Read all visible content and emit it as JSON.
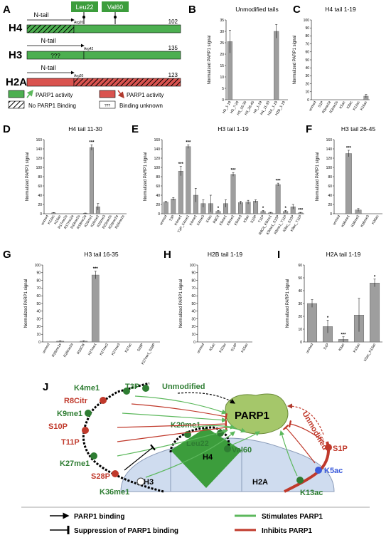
{
  "panel_a": {
    "letter": "A",
    "constructs": [
      {
        "name": "H4",
        "ntail": "N-tail",
        "mark": "Arg20",
        "length": "102",
        "color": "green",
        "unknown": false
      },
      {
        "name": "H3",
        "ntail": "N-tail",
        "mark": "Arg42",
        "length": "135",
        "color": "green",
        "unknown": true
      },
      {
        "name": "H2A",
        "ntail": "N-tail",
        "mark": "Arg20",
        "length": "123",
        "color": "red",
        "unknown": false
      }
    ],
    "markers": [
      "Leu22",
      "Val60"
    ],
    "unknown_text": "???",
    "legend": {
      "green_box": "PARP1 activity",
      "red_box": "PARP1 activity",
      "hatch": "No PARP1 Binding",
      "unknown_box": "???",
      "unknown": "Binding unknown"
    }
  },
  "chart_data": [
    {
      "panel": "B",
      "type": "bar",
      "title": "Unmodified tails",
      "ylabel": "Normalized PARP1 signal",
      "ylim": [
        0,
        35
      ],
      "yticks": [
        0,
        5,
        10,
        15,
        20,
        25,
        30,
        35
      ],
      "categories": [
        "H3_1-19",
        "H3_7-26",
        "H3_16-35",
        "H3_26-45",
        "H4_1-19",
        "H4_11-30",
        "H2A_1-19",
        "H2B_1-19"
      ],
      "values": [
        25.5,
        0,
        0,
        0,
        0,
        0,
        30,
        0
      ],
      "errors": [
        5,
        0,
        0,
        0,
        0,
        0,
        3,
        0
      ],
      "stars": [
        "",
        "",
        "",
        "",
        "",
        "",
        "",
        ""
      ]
    },
    {
      "panel": "C",
      "type": "bar",
      "title": "H4 tail 1-19",
      "ylabel": "Normalized PARP1 signal",
      "ylim": [
        0,
        100
      ],
      "yticks": [
        0,
        10,
        20,
        30,
        40,
        50,
        60,
        70,
        80,
        90,
        100
      ],
      "categories": [
        "unmod",
        "S1P",
        "R3me2a",
        "R3me2s",
        "K5ac",
        "K8ac",
        "K12ac",
        "K16ac"
      ],
      "values": [
        0,
        0,
        0,
        0,
        0,
        0,
        0,
        4.5
      ],
      "errors": [
        0,
        0,
        0,
        0,
        0,
        0,
        0,
        2
      ],
      "stars": [
        "",
        "",
        "",
        "",
        "",
        "",
        "",
        ""
      ]
    },
    {
      "panel": "D",
      "type": "bar",
      "title": "H4 tail 11-30",
      "ylabel": "Normalized PARP1 signal",
      "ylim": [
        0,
        160
      ],
      "yticks": [
        0,
        20,
        40,
        60,
        80,
        100,
        120,
        140,
        160
      ],
      "categories": [
        "unmod",
        "K12ac",
        "K16ac",
        "R17me2s",
        "R17me2a",
        "R19me2s",
        "R19me2a",
        "K20me1",
        "K20me2",
        "K20me3",
        "R23me2s",
        "R23me2a",
        "R24me2s"
      ],
      "values": [
        0,
        2,
        0,
        0,
        0,
        0,
        1,
        143,
        15,
        0,
        0,
        0,
        0
      ],
      "errors": [
        0,
        0.5,
        0,
        0,
        0,
        0,
        0.5,
        6,
        7,
        0,
        0,
        0,
        0
      ],
      "stars": [
        "",
        "",
        "",
        "",
        "",
        "",
        "",
        "***",
        "",
        "",
        "",
        "",
        ""
      ]
    },
    {
      "panel": "E",
      "type": "bar",
      "title": "H3 tail 1-19",
      "ylabel": "Normalized PARP1 signal",
      "ylim": [
        0,
        160
      ],
      "yticks": [
        0,
        20,
        40,
        60,
        80,
        100,
        120,
        140,
        160
      ],
      "categories": [
        "unmod",
        "T3P",
        "K4me1",
        "T3P_K4me1",
        "K4me2",
        "K4me3",
        "K4ac",
        "R8Cit",
        "K9me1",
        "K9me2",
        "K9me3",
        "K9ac",
        "S10P",
        "T11P",
        "R8Cit_K9me1",
        "K9me1_S10P",
        "K9me1_T11P",
        "K9ac_S10P",
        "K9ac_T11P"
      ],
      "values": [
        25,
        32,
        92,
        145,
        40,
        22,
        22,
        5,
        22,
        85,
        24,
        25,
        27,
        5,
        2,
        63,
        5,
        15,
        2
      ],
      "errors": [
        2,
        3,
        10,
        4,
        15,
        8,
        18,
        2,
        8,
        4,
        3,
        4,
        3,
        2,
        1,
        3,
        2,
        5,
        1
      ],
      "stars": [
        "",
        "",
        "***",
        "***",
        "",
        "",
        "",
        "*",
        "",
        "***",
        "",
        "",
        "",
        "*",
        "",
        "***",
        "*",
        "",
        "***"
      ]
    },
    {
      "panel": "F",
      "type": "bar",
      "title": "H3 tail 26-45",
      "ylabel": "Normalized PARP1 signal",
      "ylim": [
        0,
        160
      ],
      "yticks": [
        0,
        20,
        40,
        60,
        80,
        100,
        120,
        140,
        160
      ],
      "categories": [
        "unmod",
        "K36me1",
        "K36me2",
        "K36me3",
        "K36ac"
      ],
      "values": [
        0,
        130,
        8,
        0,
        0
      ],
      "errors": [
        0,
        7,
        3,
        0,
        0
      ],
      "stars": [
        "",
        "***",
        "",
        "",
        ""
      ]
    },
    {
      "panel": "G",
      "type": "bar",
      "title": "H3 tail 16-35",
      "ylabel": "Normalized PARP1 signal",
      "ylim": [
        0,
        100
      ],
      "yticks": [
        0,
        10,
        20,
        30,
        40,
        50,
        60,
        70,
        80,
        90,
        100
      ],
      "categories": [
        "unmod",
        "R26me2s",
        "R26me2a",
        "R26Citr",
        "K27me1",
        "K27me2",
        "K27me3",
        "K27ac",
        "S28P",
        "K27me1_S28P"
      ],
      "values": [
        0,
        1,
        0,
        1,
        87,
        0,
        0,
        0,
        0,
        0
      ],
      "errors": [
        0,
        0.5,
        0,
        0.5,
        5,
        0,
        0,
        0,
        0,
        0
      ],
      "stars": [
        "",
        "",
        "",
        "",
        "***",
        "",
        "",
        "",
        "",
        ""
      ]
    },
    {
      "panel": "H",
      "type": "bar",
      "title": "H2B tail 1-19",
      "ylabel": "Normalized PARP1 signal",
      "ylim": [
        0,
        100
      ],
      "yticks": [
        0,
        10,
        20,
        30,
        40,
        50,
        60,
        70,
        80,
        90,
        100
      ],
      "categories": [
        "unmod",
        "K5ac",
        "K12ac",
        "S14P",
        "K15ac"
      ],
      "values": [
        0,
        0,
        0,
        0,
        0
      ],
      "errors": [
        0,
        0,
        0,
        0,
        0
      ],
      "stars": [
        "",
        "",
        "",
        "",
        ""
      ]
    },
    {
      "panel": "I",
      "type": "bar",
      "title": "H2A tail 1-19",
      "ylabel": "Normalized PARP1 signal",
      "ylim": [
        0,
        60
      ],
      "yticks": [
        0,
        10,
        20,
        30,
        40,
        50,
        60
      ],
      "categories": [
        "unmod",
        "S1P",
        "K5ac",
        "K13ac",
        "K5ac_K13ac"
      ],
      "values": [
        30,
        12,
        2,
        21,
        46
      ],
      "errors": [
        3,
        5,
        2,
        13,
        3
      ],
      "stars": [
        "",
        "*",
        "***",
        "",
        "*"
      ]
    }
  ],
  "panel_j": {
    "letter": "J",
    "center": "PARP1",
    "unmodified_left": "Unmodified",
    "unmodified_right": "Unmodified",
    "h3_labels": [
      "T3P",
      "K4me1",
      "R8Citr",
      "K9me1",
      "S10P",
      "T11P",
      "K27me1",
      "S28P",
      "K36me1"
    ],
    "h4_labels": [
      "K20me1",
      "Leu22",
      "Val60"
    ],
    "h2a_labels": [
      "S1P",
      "K5ac",
      "K13ac"
    ],
    "nucleosome": [
      "H3",
      "H4",
      "H2A"
    ],
    "legend": {
      "binding": "PARP1 binding",
      "suppression": "Suppression of PARP1 binding",
      "stimulates": "Stimulates PARP1",
      "inhibits": "Inhibits PARP1"
    }
  }
}
